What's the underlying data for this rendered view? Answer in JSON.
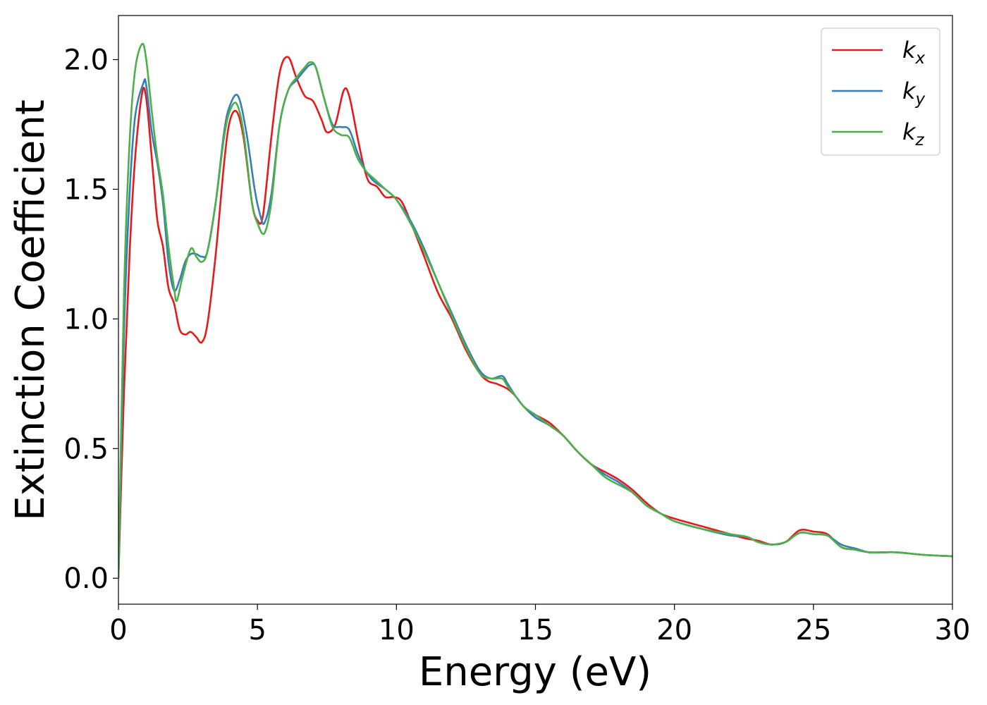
{
  "chart_data": {
    "type": "line",
    "xlabel": "Energy (eV)",
    "ylabel": "Extinction Coefficient",
    "xlim": [
      0,
      30
    ],
    "ylim": [
      -0.1,
      2.17
    ],
    "xticks": [
      0,
      5,
      10,
      15,
      20,
      25,
      30
    ],
    "xtick_labels": [
      "0",
      "5",
      "10",
      "15",
      "20",
      "25",
      "30"
    ],
    "yticks": [
      0.0,
      0.5,
      1.0,
      1.5,
      2.0
    ],
    "ytick_labels": [
      "0.0",
      "0.5",
      "1.0",
      "1.5",
      "2.0"
    ],
    "grid": false,
    "legend_position": "top-right",
    "series": [
      {
        "name": "kx",
        "label_base": "k",
        "label_sub": "x",
        "color": "#e41a1c",
        "x": [
          0,
          0.2,
          0.4,
          0.6,
          0.85,
          1.0,
          1.2,
          1.4,
          1.6,
          1.8,
          2.0,
          2.2,
          2.4,
          2.6,
          2.8,
          3.0,
          3.2,
          3.5,
          3.8,
          4.0,
          4.25,
          4.5,
          4.8,
          5.0,
          5.2,
          5.5,
          5.8,
          6.1,
          6.4,
          6.7,
          7.0,
          7.3,
          7.5,
          7.8,
          8.1,
          8.3,
          8.6,
          8.8,
          9.0,
          9.3,
          9.6,
          9.9,
          10.2,
          10.6,
          11.0,
          11.5,
          12.0,
          12.5,
          13.0,
          13.3,
          13.6,
          14.0,
          14.3,
          14.6,
          15.0,
          15.5,
          16.0,
          16.5,
          17.0,
          17.5,
          18.0,
          18.5,
          19.0,
          19.5,
          20.0,
          21.0,
          22.0,
          22.5,
          23.0,
          23.5,
          24.0,
          24.5,
          25.0,
          25.5,
          26.0,
          26.5,
          27.0,
          27.5,
          28.0,
          29.0,
          30.0
        ],
        "y": [
          0.0,
          0.72,
          1.25,
          1.62,
          1.87,
          1.85,
          1.62,
          1.38,
          1.28,
          1.12,
          1.06,
          0.96,
          0.94,
          0.95,
          0.93,
          0.91,
          0.98,
          1.25,
          1.6,
          1.76,
          1.8,
          1.7,
          1.45,
          1.38,
          1.4,
          1.7,
          1.95,
          2.01,
          1.93,
          1.86,
          1.84,
          1.77,
          1.72,
          1.75,
          1.88,
          1.86,
          1.7,
          1.6,
          1.53,
          1.51,
          1.47,
          1.47,
          1.45,
          1.35,
          1.24,
          1.1,
          1.0,
          0.88,
          0.79,
          0.76,
          0.75,
          0.73,
          0.7,
          0.66,
          0.63,
          0.6,
          0.55,
          0.49,
          0.44,
          0.41,
          0.38,
          0.34,
          0.29,
          0.25,
          0.23,
          0.2,
          0.17,
          0.155,
          0.145,
          0.13,
          0.14,
          0.185,
          0.18,
          0.17,
          0.12,
          0.11,
          0.1,
          0.1,
          0.1,
          0.09,
          0.085
        ]
      },
      {
        "name": "ky",
        "label_base": "k",
        "label_sub": "y",
        "color": "#377eb8",
        "x": [
          0,
          0.2,
          0.4,
          0.6,
          0.9,
          1.0,
          1.2,
          1.4,
          1.6,
          1.8,
          2.0,
          2.2,
          2.4,
          2.6,
          2.8,
          3.0,
          3.2,
          3.5,
          3.8,
          4.0,
          4.3,
          4.6,
          4.9,
          5.1,
          5.25,
          5.5,
          5.8,
          6.1,
          6.4,
          6.7,
          6.9,
          7.1,
          7.4,
          7.7,
          8.0,
          8.3,
          8.6,
          8.9,
          9.2,
          9.6,
          10.0,
          10.5,
          11.0,
          11.5,
          12.0,
          12.5,
          13.0,
          13.4,
          13.8,
          14.0,
          14.3,
          14.6,
          15.0,
          15.5,
          16.0,
          16.5,
          17.0,
          17.5,
          18.0,
          18.5,
          19.0,
          19.5,
          20.0,
          21.0,
          22.0,
          22.6,
          23.0,
          23.5,
          24.0,
          24.5,
          25.0,
          25.5,
          26.0,
          26.5,
          27.0,
          27.5,
          28.0,
          29.0,
          30.0
        ],
        "y": [
          0.0,
          0.95,
          1.48,
          1.78,
          1.91,
          1.9,
          1.72,
          1.6,
          1.45,
          1.22,
          1.11,
          1.15,
          1.22,
          1.25,
          1.25,
          1.24,
          1.26,
          1.45,
          1.72,
          1.82,
          1.86,
          1.72,
          1.5,
          1.4,
          1.37,
          1.48,
          1.75,
          1.88,
          1.92,
          1.96,
          1.98,
          1.97,
          1.85,
          1.75,
          1.74,
          1.73,
          1.64,
          1.57,
          1.53,
          1.5,
          1.46,
          1.38,
          1.27,
          1.14,
          1.02,
          0.9,
          0.8,
          0.77,
          0.78,
          0.75,
          0.7,
          0.66,
          0.62,
          0.59,
          0.55,
          0.49,
          0.44,
          0.4,
          0.37,
          0.33,
          0.28,
          0.25,
          0.22,
          0.19,
          0.165,
          0.16,
          0.14,
          0.13,
          0.14,
          0.175,
          0.17,
          0.165,
          0.13,
          0.115,
          0.1,
          0.1,
          0.1,
          0.09,
          0.085
        ]
      },
      {
        "name": "kz",
        "label_base": "k",
        "label_sub": "z",
        "color": "#4daf4a",
        "x": [
          0,
          0.2,
          0.4,
          0.6,
          0.85,
          1.0,
          1.2,
          1.4,
          1.6,
          1.8,
          2.0,
          2.1,
          2.3,
          2.6,
          2.8,
          3.0,
          3.2,
          3.5,
          3.8,
          4.0,
          4.25,
          4.5,
          4.8,
          5.0,
          5.25,
          5.5,
          5.8,
          6.1,
          6.4,
          6.7,
          6.9,
          7.1,
          7.4,
          7.7,
          8.0,
          8.3,
          8.6,
          8.9,
          9.2,
          9.6,
          10.0,
          10.5,
          11.0,
          11.5,
          12.0,
          12.5,
          13.0,
          13.4,
          13.8,
          14.0,
          14.3,
          14.6,
          15.0,
          15.5,
          16.0,
          16.5,
          17.0,
          17.5,
          18.0,
          18.5,
          19.0,
          19.5,
          20.0,
          21.0,
          22.0,
          22.6,
          23.0,
          23.5,
          24.0,
          24.5,
          25.0,
          25.5,
          26.0,
          26.5,
          27.0,
          27.5,
          28.0,
          29.0,
          30.0
        ],
        "y": [
          0.0,
          1.1,
          1.68,
          1.96,
          2.06,
          2.0,
          1.8,
          1.62,
          1.48,
          1.28,
          1.12,
          1.07,
          1.16,
          1.27,
          1.24,
          1.22,
          1.26,
          1.45,
          1.7,
          1.8,
          1.83,
          1.72,
          1.45,
          1.37,
          1.33,
          1.45,
          1.75,
          1.88,
          1.93,
          1.97,
          1.99,
          1.97,
          1.85,
          1.74,
          1.71,
          1.7,
          1.62,
          1.57,
          1.54,
          1.5,
          1.46,
          1.37,
          1.26,
          1.14,
          1.01,
          0.89,
          0.79,
          0.77,
          0.77,
          0.74,
          0.7,
          0.66,
          0.63,
          0.59,
          0.55,
          0.49,
          0.44,
          0.39,
          0.36,
          0.33,
          0.28,
          0.25,
          0.22,
          0.19,
          0.17,
          0.16,
          0.14,
          0.13,
          0.14,
          0.175,
          0.17,
          0.165,
          0.12,
          0.11,
          0.1,
          0.1,
          0.1,
          0.09,
          0.085
        ]
      }
    ]
  }
}
